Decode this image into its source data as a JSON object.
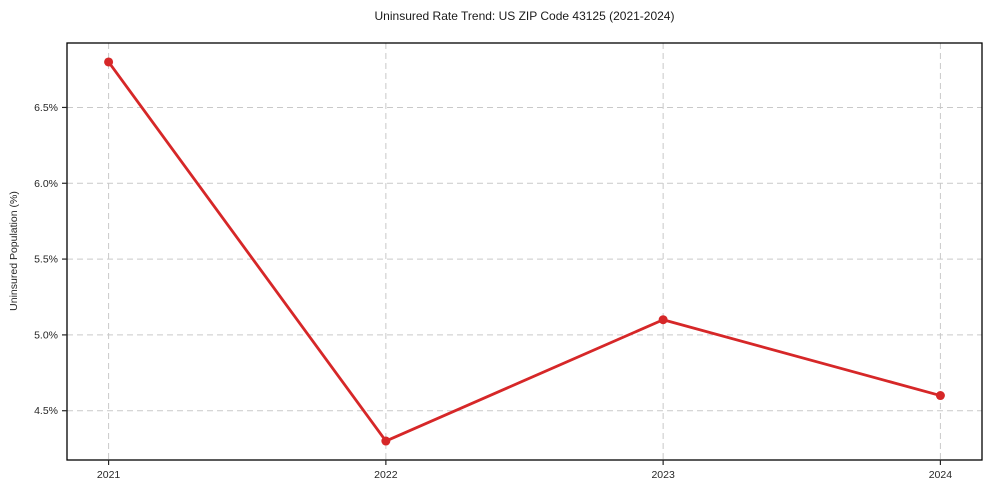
{
  "chart_data": {
    "type": "line",
    "title": "Uninsured Rate Trend: US ZIP Code 43125 (2021-2024)",
    "xlabel": "",
    "ylabel": "Uninsured Population (%)",
    "x": [
      2021,
      2022,
      2023,
      2024
    ],
    "series": [
      {
        "name": "Uninsured Population (%)",
        "values": [
          6.8,
          4.3,
          5.1,
          4.6
        ]
      }
    ],
    "xticks": [
      2021,
      2022,
      2023,
      2024
    ],
    "xtick_labels": [
      "2021",
      "2022",
      "2023",
      "2024"
    ],
    "yticks": [
      4.5,
      5.0,
      5.5,
      6.0,
      6.5
    ],
    "ytick_labels": [
      "4.5%",
      "5.0%",
      "5.5%",
      "6.0%",
      "6.5%"
    ],
    "xlim": [
      2020.85,
      2024.15
    ],
    "ylim": [
      4.175,
      6.925
    ],
    "grid": true,
    "legend_position": "none",
    "line_color": "#d62728",
    "marker_color": "#d62728",
    "grid_color": "#c9c9c9",
    "spine_color": "#000000",
    "tick_color": "#262626",
    "background_color": "#ffffff"
  }
}
